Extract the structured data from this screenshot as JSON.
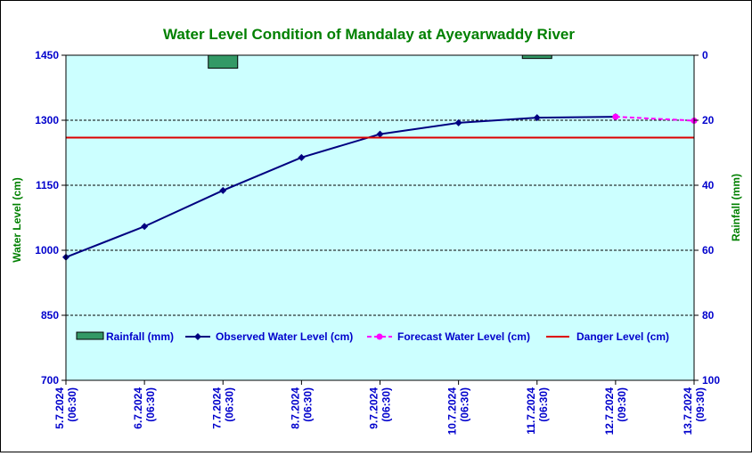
{
  "colors": {
    "plot_bg": "#ccffff",
    "title": "#008000",
    "axis_label": "#008000",
    "tick": "#0000cc",
    "observed": "#000080",
    "forecast": "#ff00ff",
    "danger": "#dd0000",
    "rainfall": "#339966"
  },
  "chart_data": {
    "type": "line",
    "title": "Water Level Condition of Mandalay at Ayeyarwaddy River",
    "ylabel": "Water Level (cm)",
    "y2label": "Rainfall (mm)",
    "ylim": [
      700,
      1450
    ],
    "y2lim_inverted": [
      0,
      100
    ],
    "yticks": [
      "1450",
      "1300",
      "1150",
      "1000",
      "850",
      "700"
    ],
    "yticks_values": [
      1450,
      1300,
      1150,
      1000,
      850,
      700
    ],
    "y2ticks": [
      "0",
      "20",
      "40",
      "60",
      "80",
      "100"
    ],
    "y2ticks_values": [
      0,
      20,
      40,
      60,
      80,
      100
    ],
    "categories": [
      [
        "5.7.2024",
        "(06:30)"
      ],
      [
        "6.7.2024",
        "(06:30)"
      ],
      [
        "7.7.2024",
        "(06:30)"
      ],
      [
        "8.7.2024",
        "(06:30)"
      ],
      [
        "9.7.2024",
        "(06:30)"
      ],
      [
        "10.7.2024",
        "(06:30)"
      ],
      [
        "11.7.2024",
        "(06:30)"
      ],
      [
        "12.7.2024",
        "(09:30)"
      ],
      [
        "13.7.2024",
        "(09:30)"
      ]
    ],
    "grid": true,
    "legend_placement": "bottom inside plot",
    "series": [
      {
        "name": "Rainfall (mm)",
        "kind": "bar",
        "axis": "right",
        "values": [
          null,
          null,
          4,
          null,
          null,
          null,
          1,
          null,
          null
        ]
      },
      {
        "name": "Observed Water Level (cm)",
        "kind": "line",
        "axis": "left",
        "values": [
          984,
          1055,
          1138,
          1214,
          1268,
          1294,
          1306,
          1308,
          null
        ]
      },
      {
        "name": "Forecast Water Level (cm)",
        "kind": "dashed-line",
        "axis": "left",
        "values": [
          null,
          null,
          null,
          null,
          null,
          null,
          null,
          1308,
          1299
        ]
      },
      {
        "name": "Danger Level (cm)",
        "kind": "hline",
        "axis": "left",
        "value": 1260
      }
    ]
  }
}
